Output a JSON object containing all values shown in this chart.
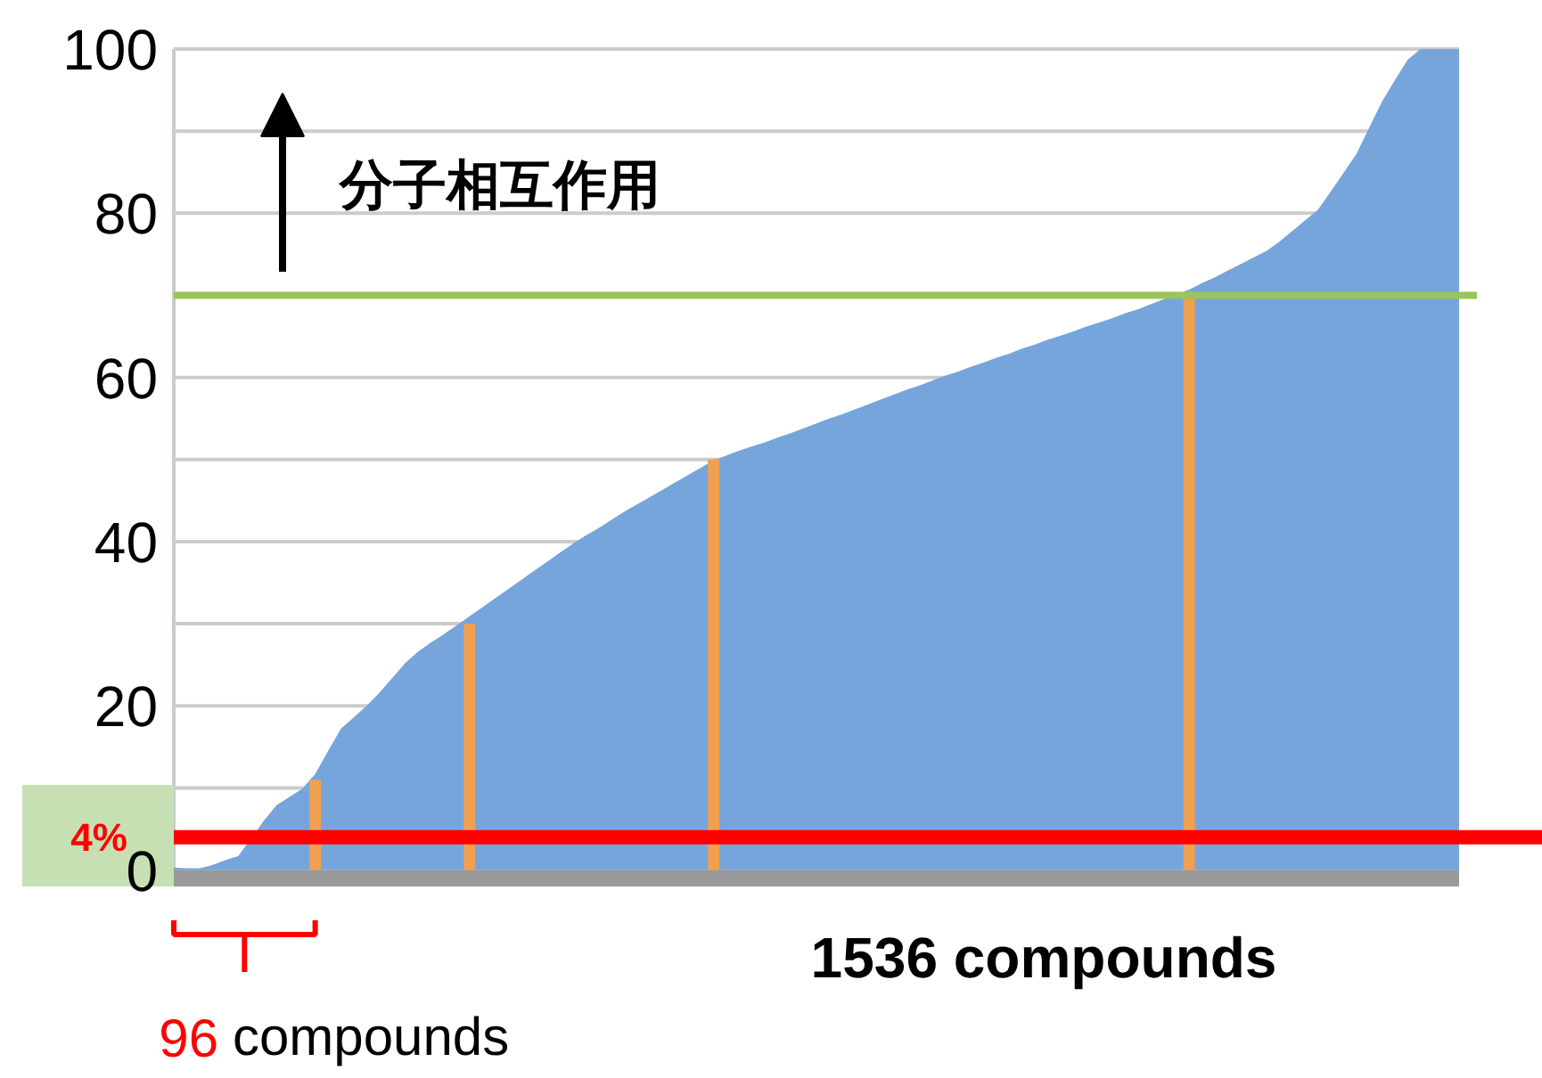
{
  "chart_data": {
    "type": "area",
    "categories": [
      null,
      null,
      null,
      null,
      null,
      null,
      null,
      null,
      null,
      null,
      null,
      null,
      null,
      null,
      null,
      null,
      null,
      null,
      null,
      null,
      null,
      null,
      null,
      null,
      null,
      null,
      null,
      null,
      null,
      null,
      null,
      null,
      null,
      null,
      null,
      null,
      null,
      null,
      null,
      null,
      null,
      null,
      null,
      null,
      null,
      null,
      null,
      null,
      null,
      null,
      null,
      null,
      null,
      null,
      null,
      null,
      null,
      null,
      null,
      null,
      null,
      null,
      null,
      null,
      null,
      null,
      null,
      null,
      null,
      null,
      null,
      null,
      null,
      null,
      null,
      null,
      null,
      null,
      null,
      null,
      null,
      null,
      null,
      null,
      null,
      null,
      null,
      null,
      null,
      null,
      null,
      null,
      null,
      null,
      null,
      null,
      null,
      null,
      null,
      null,
      null
    ],
    "series": [
      {
        "color": "#76a5db",
        "values": [
          0.3,
          0.2,
          0.2,
          0.6,
          1.2,
          1.7,
          3.8,
          6.0,
          7.9,
          8.9,
          9.9,
          11.7,
          14.5,
          17.2,
          18.6,
          20.0,
          21.6,
          23.4,
          25.2,
          26.6,
          27.7,
          28.7,
          29.8,
          30.9,
          32.0,
          33.1,
          34.2,
          35.3,
          36.4,
          37.5,
          38.6,
          39.7,
          40.7,
          41.6,
          42.6,
          43.6,
          44.5,
          45.4,
          46.3,
          47.2,
          48.1,
          49.0,
          49.9,
          50.5,
          51.1,
          51.6,
          52.1,
          52.7,
          53.2,
          53.8,
          54.4,
          55.0,
          55.5,
          56.1,
          56.7,
          57.3,
          57.9,
          58.5,
          59.0,
          59.6,
          60.2,
          60.7,
          61.3,
          61.8,
          62.4,
          62.9,
          63.5,
          64.0,
          64.6,
          65.1,
          65.6,
          66.2,
          66.7,
          67.2,
          67.8,
          68.3,
          68.9,
          69.5,
          70.1,
          70.7,
          71.5,
          72.2,
          73.0,
          73.8,
          74.6,
          75.4,
          76.5,
          77.8,
          79.1,
          80.4,
          82.6,
          84.9,
          87.2,
          90.4,
          93.6,
          96.2,
          98.7,
          100,
          100,
          100,
          100
        ]
      },
      {
        "type": "bar",
        "color": "#f0a050",
        "values": [
          null,
          null,
          null,
          null,
          null,
          null,
          null,
          null,
          null,
          null,
          null,
          11,
          null,
          null,
          null,
          null,
          null,
          null,
          null,
          null,
          null,
          null,
          null,
          30,
          null,
          null,
          null,
          null,
          null,
          null,
          null,
          null,
          null,
          null,
          null,
          null,
          null,
          null,
          null,
          null,
          null,
          null,
          50,
          null,
          null,
          null,
          null,
          null,
          null,
          null,
          null,
          null,
          null,
          null,
          null,
          null,
          null,
          null,
          null,
          null,
          null,
          null,
          null,
          null,
          null,
          null,
          null,
          null,
          null,
          null,
          null,
          null,
          null,
          null,
          null,
          null,
          null,
          null,
          null,
          70,
          null,
          null,
          null,
          null,
          null,
          null,
          null,
          null,
          null,
          null,
          null,
          null,
          null,
          null,
          null,
          null,
          null,
          null,
          null,
          null,
          null
        ]
      }
    ],
    "ylim": [
      -2,
      100
    ],
    "yticks": [
      0,
      {
        "value": 10,
        "label": null
      },
      20,
      {
        "value": 30,
        "label": null
      },
      40,
      {
        "value": 50,
        "label": null
      },
      60,
      {
        "value": 70,
        "label": null
      },
      80,
      {
        "value": 90,
        "label": null
      },
      100
    ],
    "grid": "y",
    "ref_lines": [
      {
        "axis": "y",
        "value": 70,
        "color": "#9bc55a"
      },
      {
        "axis": "y",
        "value": 4,
        "label": "4%",
        "color": "#ff0000"
      }
    ],
    "bands": [
      {
        "axis": "y",
        "from": -2,
        "to": 0,
        "color": "#999999"
      }
    ],
    "annotations": [
      "分子相互作用",
      "1536 compounds",
      "96 compounds"
    ]
  }
}
